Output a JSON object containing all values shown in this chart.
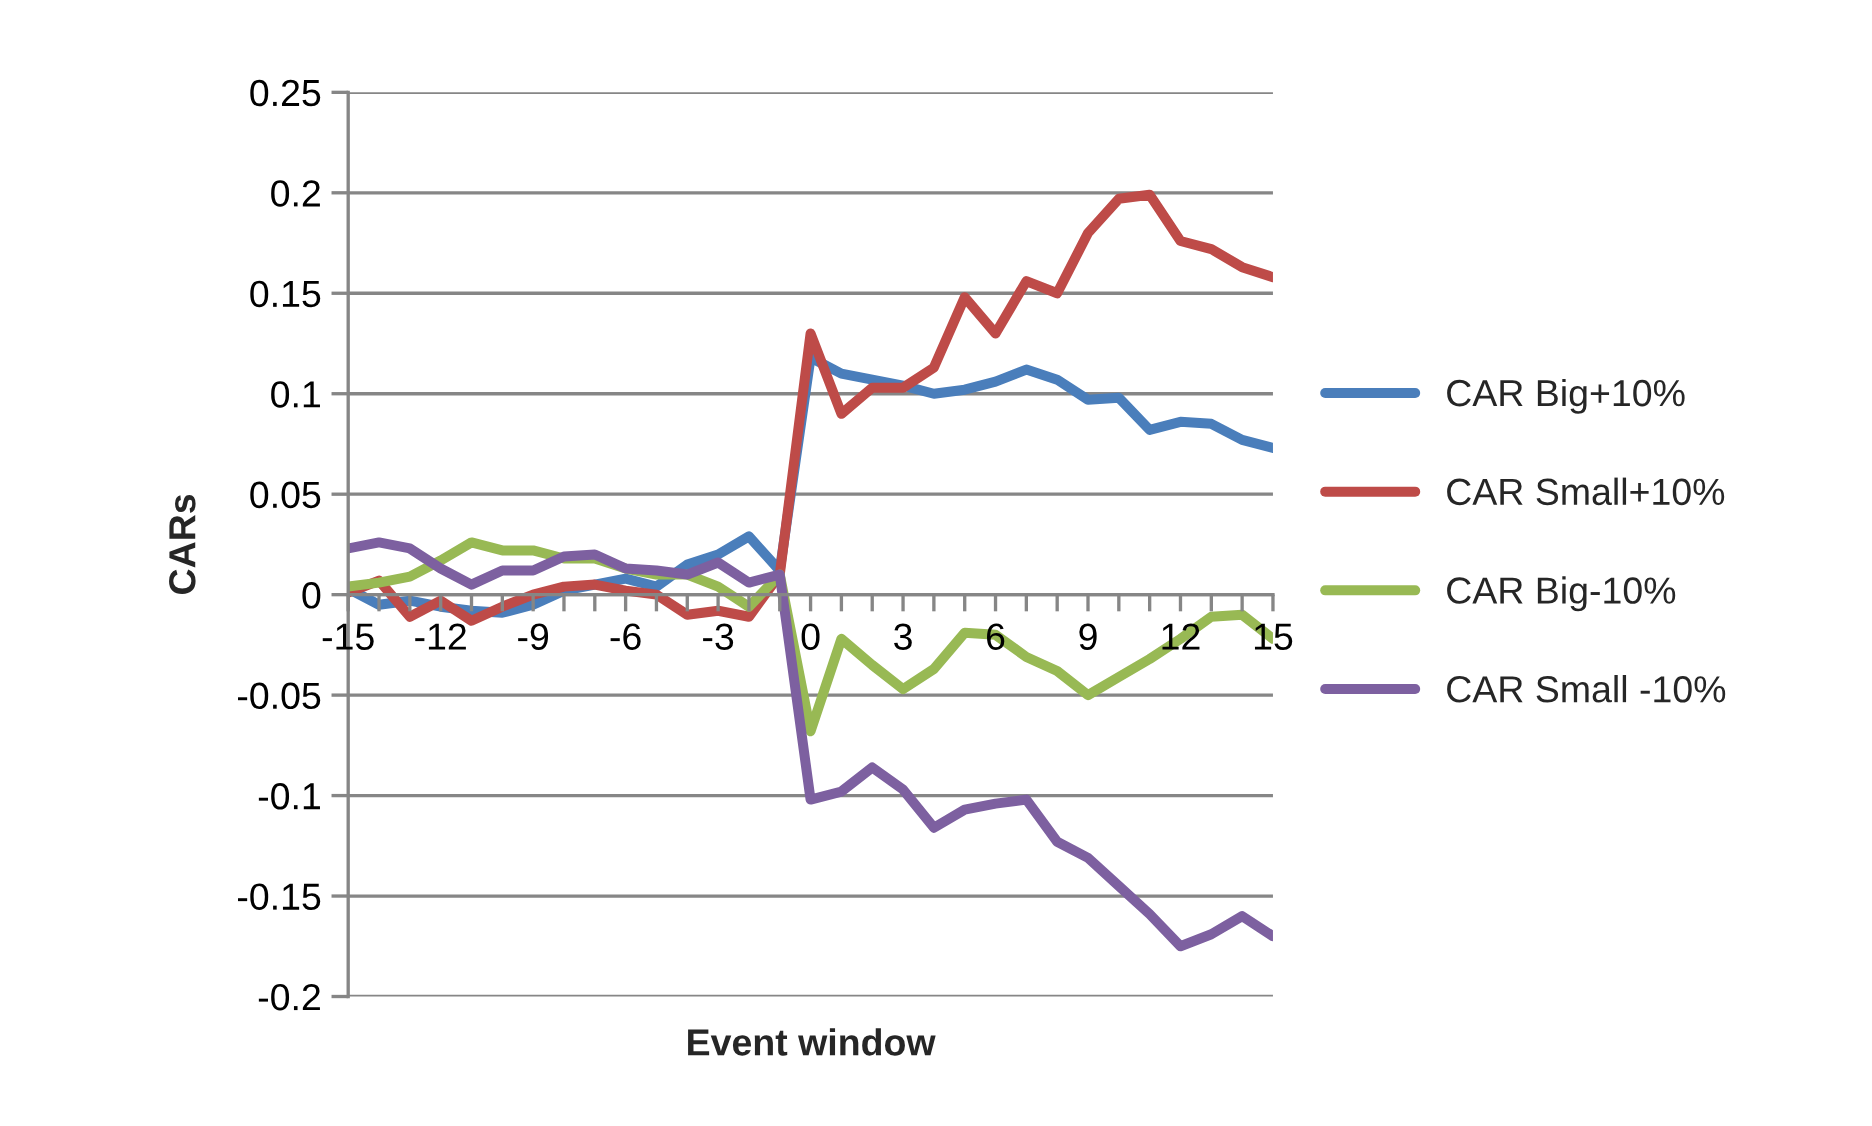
{
  "chart_data": {
    "type": "line",
    "xlabel": "Event window",
    "ylabel": "CARs",
    "x": [
      -15,
      -14,
      -13,
      -12,
      -11,
      -10,
      -9,
      -8,
      -7,
      -6,
      -5,
      -4,
      -3,
      -2,
      -1,
      0,
      1,
      2,
      3,
      4,
      5,
      6,
      7,
      8,
      9,
      10,
      11,
      12,
      13,
      14,
      15
    ],
    "series": [
      {
        "name": "CAR Big+10%",
        "color": "#4a7ebb",
        "values": [
          0.003,
          -0.005,
          -0.003,
          -0.006,
          -0.008,
          -0.009,
          -0.005,
          0.002,
          0.005,
          0.008,
          0.004,
          0.015,
          0.02,
          0.029,
          0.012,
          0.118,
          0.11,
          0.107,
          0.104,
          0.1,
          0.102,
          0.106,
          0.112,
          0.107,
          0.097,
          0.098,
          0.082,
          0.086,
          0.085,
          0.077,
          0.073
        ]
      },
      {
        "name": "CAR Small+10%",
        "color": "#be4b48",
        "values": [
          0.001,
          0.007,
          -0.011,
          -0.003,
          -0.013,
          -0.006,
          0.0,
          0.004,
          0.005,
          0.002,
          0.0,
          -0.01,
          -0.008,
          -0.011,
          0.01,
          0.13,
          0.09,
          0.103,
          0.103,
          0.113,
          0.148,
          0.13,
          0.156,
          0.15,
          0.18,
          0.197,
          0.199,
          0.176,
          0.172,
          0.163,
          0.158
        ]
      },
      {
        "name": "CAR Big-10%",
        "color": "#98b954",
        "values": [
          0.004,
          0.006,
          0.009,
          0.017,
          0.026,
          0.022,
          0.022,
          0.018,
          0.018,
          0.013,
          0.01,
          0.01,
          0.004,
          -0.006,
          0.01,
          -0.068,
          -0.022,
          -0.035,
          -0.047,
          -0.037,
          -0.019,
          -0.02,
          -0.031,
          -0.038,
          -0.05,
          -0.041,
          -0.032,
          -0.022,
          -0.011,
          -0.01,
          -0.022
        ]
      },
      {
        "name": "CAR Small -10%",
        "color": "#7d60a0",
        "values": [
          0.023,
          0.026,
          0.023,
          0.013,
          0.005,
          0.012,
          0.012,
          0.019,
          0.02,
          0.013,
          0.012,
          0.01,
          0.016,
          0.006,
          0.01,
          -0.102,
          -0.098,
          -0.086,
          -0.097,
          -0.116,
          -0.107,
          -0.104,
          -0.102,
          -0.123,
          -0.131,
          -0.145,
          -0.159,
          -0.175,
          -0.169,
          -0.16,
          -0.17
        ]
      }
    ],
    "xlim": [
      -15,
      15
    ],
    "xticks": [
      -15,
      {
        "value": -14,
        "label": null
      },
      {
        "value": -13,
        "label": null
      },
      -12,
      {
        "value": -11,
        "label": null
      },
      {
        "value": -10,
        "label": null
      },
      -9,
      {
        "value": -8,
        "label": null
      },
      {
        "value": -7,
        "label": null
      },
      -6,
      {
        "value": -5,
        "label": null
      },
      {
        "value": -4,
        "label": null
      },
      -3,
      {
        "value": -2,
        "label": null
      },
      {
        "value": -1,
        "label": null
      },
      0,
      {
        "value": 1,
        "label": null
      },
      {
        "value": 2,
        "label": null
      },
      3,
      {
        "value": 4,
        "label": null
      },
      {
        "value": 5,
        "label": null
      },
      6,
      {
        "value": 7,
        "label": null
      },
      {
        "value": 8,
        "label": null
      },
      9,
      {
        "value": 10,
        "label": null
      },
      {
        "value": 11,
        "label": null
      },
      12,
      {
        "value": 13,
        "label": null
      },
      {
        "value": 14,
        "label": null
      },
      15
    ],
    "ylim": [
      -0.2,
      0.25
    ],
    "yticks": [
      -0.2,
      -0.15,
      -0.1,
      -0.05,
      0,
      0.05,
      0.1,
      0.15,
      0.2,
      0.25
    ],
    "grid": "y",
    "legend": "right",
    "marker": "none",
    "line_style": "solid"
  }
}
